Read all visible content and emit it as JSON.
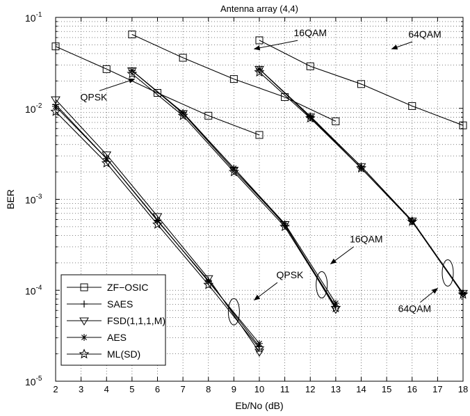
{
  "chart_data": {
    "type": "line",
    "title": "Antenna array (4,4)",
    "xlabel": "Eb/No (dB)",
    "ylabel": "BER",
    "y_scale": "log",
    "xlim": [
      2,
      18
    ],
    "ylim": [
      1e-05,
      0.1
    ],
    "x_ticks": [
      "2",
      "3",
      "4",
      "5",
      "6",
      "7",
      "8",
      "9",
      "10",
      "11",
      "12",
      "13",
      "14",
      "15",
      "16",
      "17",
      "18"
    ],
    "y_ticks": [
      {
        "base": "10",
        "exp": "-5",
        "value": 1e-05
      },
      {
        "base": "10",
        "exp": "-4",
        "value": 0.0001
      },
      {
        "base": "10",
        "exp": "-3",
        "value": 0.001
      },
      {
        "base": "10",
        "exp": "-2",
        "value": 0.01
      },
      {
        "base": "10",
        "exp": "-1",
        "value": 0.1
      }
    ],
    "grid": true,
    "legend_position": "bottom-left",
    "legend": [
      {
        "label": "ZF−OSIC",
        "marker": "square"
      },
      {
        "label": "SAES",
        "marker": "plus"
      },
      {
        "label": "FSD(1,1,1,M)",
        "marker": "triangle-down"
      },
      {
        "label": "AES",
        "marker": "asterisk"
      },
      {
        "label": "ML(SD)",
        "marker": "star"
      }
    ],
    "series": [
      {
        "name": "ZF−OSIC",
        "modulation": "QPSK",
        "marker": "square",
        "x": [
          2,
          4,
          6,
          8,
          10
        ],
        "y": [
          0.048,
          0.027,
          0.0148,
          0.0083,
          0.0051
        ]
      },
      {
        "name": "ZF−OSIC",
        "modulation": "16QAM",
        "marker": "square",
        "x": [
          5,
          7,
          9,
          11,
          13
        ],
        "y": [
          0.065,
          0.036,
          0.021,
          0.0133,
          0.0072
        ]
      },
      {
        "name": "ZF−OSIC",
        "modulation": "64QAM",
        "marker": "square",
        "x": [
          10,
          12,
          14,
          16,
          18
        ],
        "y": [
          0.056,
          0.029,
          0.0185,
          0.0106,
          0.0065
        ]
      },
      {
        "name": "SAES",
        "modulation": "QPSK",
        "marker": "plus",
        "x": [
          2,
          4,
          6,
          8,
          10
        ],
        "y": [
          0.011,
          0.0028,
          0.00058,
          0.000128,
          2.4e-05
        ]
      },
      {
        "name": "FSD(1,1,1,M)",
        "modulation": "QPSK",
        "marker": "triangle-down",
        "x": [
          2,
          4,
          6,
          8,
          10
        ],
        "y": [
          0.0125,
          0.0031,
          0.00065,
          0.000135,
          2.1e-05
        ]
      },
      {
        "name": "AES",
        "modulation": "QPSK",
        "marker": "asterisk",
        "x": [
          2,
          4,
          6,
          8,
          10
        ],
        "y": [
          0.0105,
          0.0028,
          0.00059,
          0.000125,
          2.6e-05
        ]
      },
      {
        "name": "ML(SD)",
        "modulation": "QPSK",
        "marker": "star",
        "x": [
          2,
          4,
          6,
          8,
          10
        ],
        "y": [
          0.0092,
          0.0025,
          0.00053,
          0.000115,
          2.3e-05
        ]
      },
      {
        "name": "SAES",
        "modulation": "16QAM",
        "marker": "plus",
        "x": [
          5,
          7,
          9,
          11,
          13
        ],
        "y": [
          0.026,
          0.009,
          0.0022,
          0.00052,
          6.6e-05
        ]
      },
      {
        "name": "FSD(1,1,1,M)",
        "modulation": "16QAM",
        "marker": "triangle-down",
        "x": [
          5,
          7,
          9,
          11,
          13
        ],
        "y": [
          0.026,
          0.0088,
          0.0021,
          0.00053,
          6.2e-05
        ]
      },
      {
        "name": "AES",
        "modulation": "16QAM",
        "marker": "asterisk",
        "x": [
          5,
          7,
          9,
          11,
          13
        ],
        "y": [
          0.026,
          0.0089,
          0.0022,
          0.00054,
          7.2e-05
        ]
      },
      {
        "name": "ML(SD)",
        "modulation": "16QAM",
        "marker": "star",
        "x": [
          5,
          7,
          9,
          11,
          13
        ],
        "y": [
          0.024,
          0.0083,
          0.002,
          0.0005,
          6.4e-05
        ]
      },
      {
        "name": "SAES",
        "modulation": "64QAM",
        "marker": "plus",
        "x": [
          10,
          12,
          14,
          16,
          18
        ],
        "y": [
          0.027,
          0.0082,
          0.0023,
          0.00058,
          9.2e-05
        ]
      },
      {
        "name": "FSD(1,1,1,M)",
        "modulation": "64QAM",
        "marker": "triangle-down",
        "x": [
          10,
          12,
          14,
          16,
          18
        ],
        "y": [
          0.027,
          0.0081,
          0.0023,
          0.00058,
          9.3e-05
        ]
      },
      {
        "name": "AES",
        "modulation": "64QAM",
        "marker": "asterisk",
        "x": [
          10,
          12,
          14,
          16,
          18
        ],
        "y": [
          0.027,
          0.008,
          0.0022,
          0.00057,
          9.1e-05
        ]
      },
      {
        "name": "ML(SD)",
        "modulation": "64QAM",
        "marker": "star",
        "x": [
          10,
          12,
          14,
          16,
          18
        ],
        "y": [
          0.025,
          0.0078,
          0.0022,
          0.00057,
          9e-05
        ]
      }
    ],
    "annotations": [
      {
        "text": "16QAM",
        "label_x": 12.0,
        "label_y": 0.062,
        "arrow_to_x": 9.8,
        "arrow_to_y": 0.045
      },
      {
        "text": "64QAM",
        "label_x": 16.5,
        "label_y": 0.06,
        "arrow_to_x": 15.2,
        "arrow_to_y": 0.045
      },
      {
        "text": "QPSK",
        "label_x": 3.5,
        "label_y": 0.0122,
        "arrow_to_x": 5.1,
        "arrow_to_y": 0.021
      },
      {
        "text": "16QAM",
        "label_x": 14.2,
        "label_y": 0.000335,
        "arrow_to_x": 12.8,
        "arrow_to_y": 0.000195
      },
      {
        "text": "QPSK",
        "label_x": 11.2,
        "label_y": 0.000135,
        "arrow_to_x": 9.8,
        "arrow_to_y": 7.8e-05
      },
      {
        "text": "64QAM",
        "label_x": 16.1,
        "label_y": 5.75e-05,
        "arrow_to_x": 17.0,
        "arrow_to_y": 0.000105
      }
    ],
    "ellipses": [
      {
        "x": 9.0,
        "y": 5.8e-05
      },
      {
        "x": 12.45,
        "y": 0.000115
      },
      {
        "x": 17.4,
        "y": 0.000155
      }
    ]
  }
}
